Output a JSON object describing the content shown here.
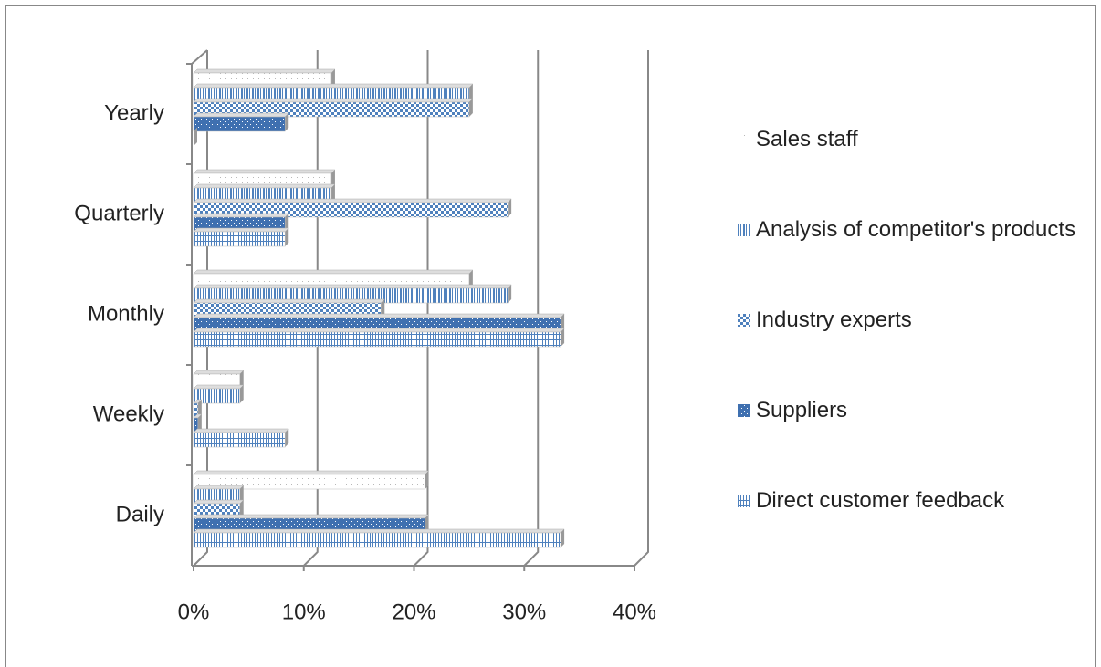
{
  "chart_data": {
    "type": "bar3d_horizontal",
    "categories": [
      "Daily",
      "Weekly",
      "Monthly",
      "Quarterly",
      "Yearly"
    ],
    "series": [
      {
        "name": "Sales staff",
        "color": "#b8b8b8",
        "pattern": "dots",
        "values": [
          21,
          4.2,
          25,
          12.5,
          12.5
        ]
      },
      {
        "name": "Analysis of competitor's products",
        "color": "#4f81bd",
        "pattern": "vertical",
        "values": [
          4.2,
          4.2,
          28.5,
          12.5,
          25
        ]
      },
      {
        "name": "Industry experts",
        "color": "#4f81bd",
        "pattern": "checker",
        "values": [
          4.2,
          0.4,
          17,
          28.5,
          25
        ]
      },
      {
        "name": "Suppliers",
        "color": "#3f70b0",
        "pattern": "dense",
        "values": [
          21,
          0.4,
          33.3,
          8.3,
          8.3
        ]
      },
      {
        "name": "Direct customer feedback",
        "color": "#4f81bd",
        "pattern": "grid",
        "values": [
          33.3,
          8.3,
          33.3,
          8.3,
          0
        ]
      }
    ],
    "xlim": [
      0,
      40
    ],
    "xticks": [
      {
        "value": 0,
        "label": "0%"
      },
      {
        "value": 10,
        "label": "10%"
      },
      {
        "value": 20,
        "label": "20%"
      },
      {
        "value": 30,
        "label": "30%"
      },
      {
        "value": 40,
        "label": "40%"
      }
    ],
    "grid": true,
    "legend": "right"
  }
}
